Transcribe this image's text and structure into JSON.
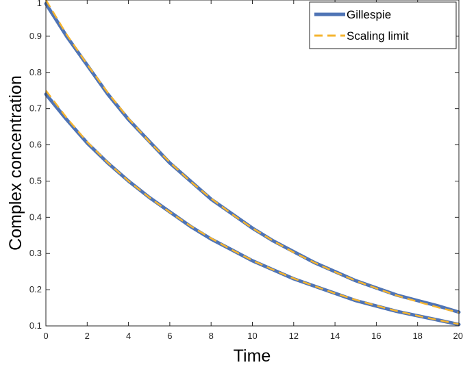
{
  "chart_data": {
    "type": "line",
    "xlabel": "Time",
    "ylabel": "Complex concentration",
    "xlim": [
      0,
      20
    ],
    "ylim": [
      0.1,
      1.0
    ],
    "xticks": [
      0,
      2,
      4,
      6,
      8,
      10,
      12,
      14,
      16,
      18,
      20
    ],
    "yticks": [
      0.1,
      0.2,
      0.3,
      0.4,
      0.5,
      0.6,
      0.7,
      0.8,
      0.9,
      1.0
    ],
    "xtick_labels": [
      "0",
      "2",
      "4",
      "6",
      "8",
      "10",
      "12",
      "14",
      "16",
      "18",
      "20"
    ],
    "ytick_labels": [
      "0.1",
      "0.2",
      "0.3",
      "0.4",
      "0.5",
      "0.6",
      "0.7",
      "0.8",
      "0.9",
      "1"
    ],
    "grid": false,
    "legend_position": "top-right",
    "x": [
      0,
      1,
      2,
      3,
      4,
      5,
      6,
      7,
      8,
      9,
      10,
      11,
      12,
      13,
      14,
      15,
      16,
      17,
      18,
      19,
      20
    ],
    "series": [
      {
        "name": "Gillespie",
        "style": "solid",
        "color": "#4f74b5",
        "curves": [
          [
            0.99,
            0.9,
            0.82,
            0.74,
            0.67,
            0.61,
            0.55,
            0.5,
            0.45,
            0.41,
            0.37,
            0.335,
            0.305,
            0.275,
            0.25,
            0.225,
            0.205,
            0.185,
            0.17,
            0.155,
            0.138
          ],
          [
            0.74,
            0.67,
            0.605,
            0.55,
            0.5,
            0.455,
            0.415,
            0.375,
            0.34,
            0.31,
            0.28,
            0.255,
            0.23,
            0.21,
            0.19,
            0.17,
            0.155,
            0.14,
            0.128,
            0.116,
            0.104
          ]
        ]
      },
      {
        "name": "Scaling limit",
        "style": "dashed",
        "color": "#f5b42f",
        "curves": [
          [
            1.0,
            0.905,
            0.822,
            0.744,
            0.673,
            0.609,
            0.552,
            0.499,
            0.452,
            0.409,
            0.37,
            0.335,
            0.303,
            0.275,
            0.249,
            0.225,
            0.204,
            0.184,
            0.167,
            0.151,
            0.137
          ],
          [
            0.75,
            0.675,
            0.608,
            0.551,
            0.5,
            0.455,
            0.414,
            0.376,
            0.342,
            0.31,
            0.281,
            0.255,
            0.231,
            0.21,
            0.19,
            0.172,
            0.156,
            0.141,
            0.128,
            0.116,
            0.105
          ]
        ]
      }
    ]
  }
}
